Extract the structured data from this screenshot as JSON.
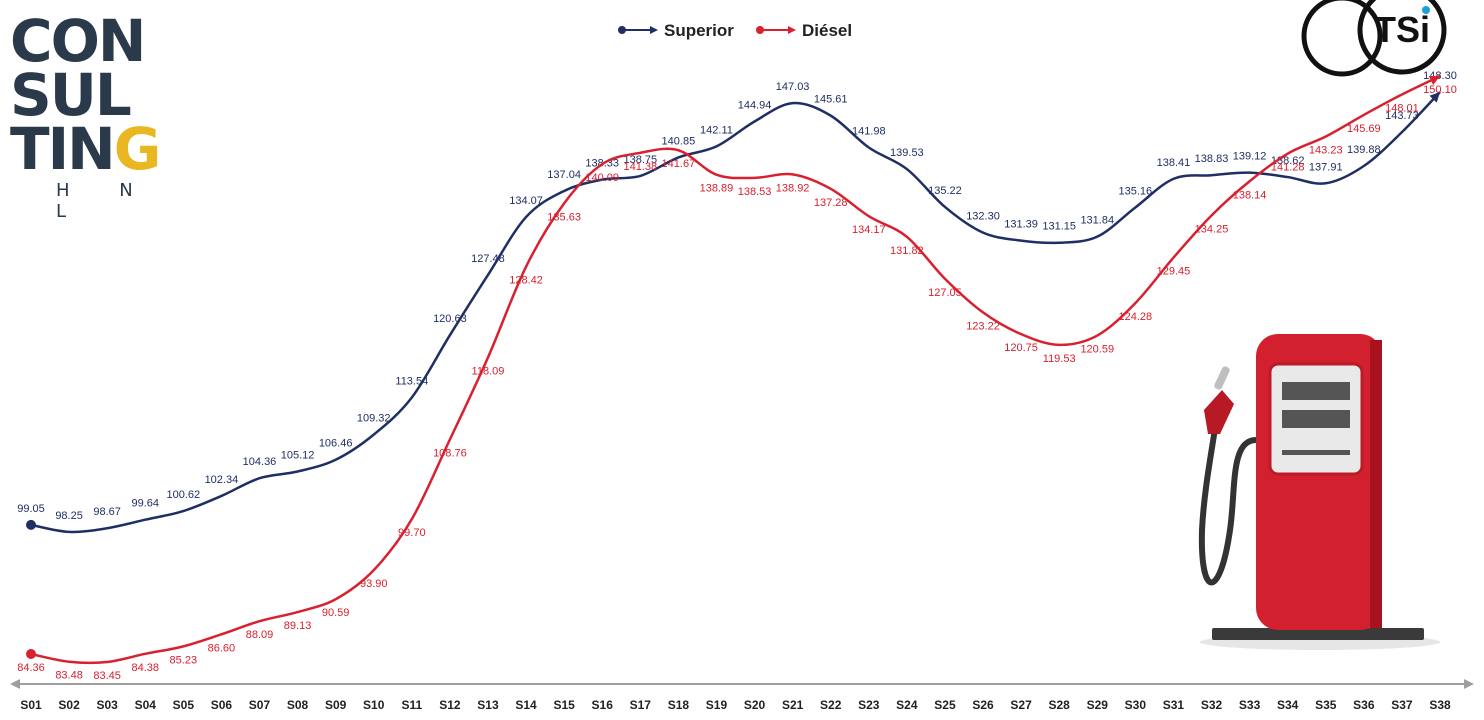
{
  "brand": {
    "lines": [
      "CON",
      "SUL",
      "TIN",
      "G"
    ],
    "subtitle": "H N L",
    "accent_color": "#e9b722",
    "text_color": "#2b3a4b"
  },
  "logo": {
    "text": "TSi"
  },
  "pump_icon": "fuel-pump-icon",
  "chart_data": {
    "type": "line",
    "categories": [
      "S01",
      "S02",
      "S03",
      "S04",
      "S05",
      "S06",
      "S07",
      "S08",
      "S09",
      "S10",
      "S11",
      "S12",
      "S13",
      "S14",
      "S15",
      "S16",
      "S17",
      "S18",
      "S19",
      "S20",
      "S21",
      "S22",
      "S23",
      "S24",
      "S25",
      "S26",
      "S27",
      "S28",
      "S29",
      "S30",
      "S31",
      "S32",
      "S33",
      "S34",
      "S35",
      "S36",
      "S37",
      "S38"
    ],
    "series": [
      {
        "name": "Superior",
        "color": "#1f2f63",
        "values": [
          99.05,
          98.25,
          98.67,
          99.64,
          100.62,
          102.34,
          104.36,
          105.12,
          106.46,
          109.32,
          113.54,
          120.63,
          127.48,
          134.07,
          137.04,
          138.33,
          138.75,
          140.85,
          142.11,
          144.94,
          147.03,
          145.61,
          141.98,
          139.53,
          135.22,
          132.3,
          131.39,
          131.15,
          131.84,
          135.16,
          138.41,
          138.83,
          139.12,
          138.62,
          137.91,
          139.88,
          143.73,
          148.3
        ]
      },
      {
        "name": "Diésel",
        "color": "#d8202e",
        "values": [
          84.36,
          83.48,
          83.45,
          84.38,
          85.23,
          86.6,
          88.09,
          89.13,
          90.59,
          93.9,
          99.7,
          108.76,
          118.09,
          128.42,
          135.63,
          140.09,
          141.38,
          141.67,
          138.89,
          138.53,
          138.92,
          137.28,
          134.17,
          131.82,
          127.05,
          123.22,
          120.75,
          119.53,
          120.59,
          124.28,
          129.45,
          134.25,
          138.14,
          141.28,
          143.23,
          145.69,
          148.01,
          150.1
        ]
      }
    ],
    "legend_position": "top-center",
    "grid": false,
    "axis_color": "#9e9e9e"
  }
}
